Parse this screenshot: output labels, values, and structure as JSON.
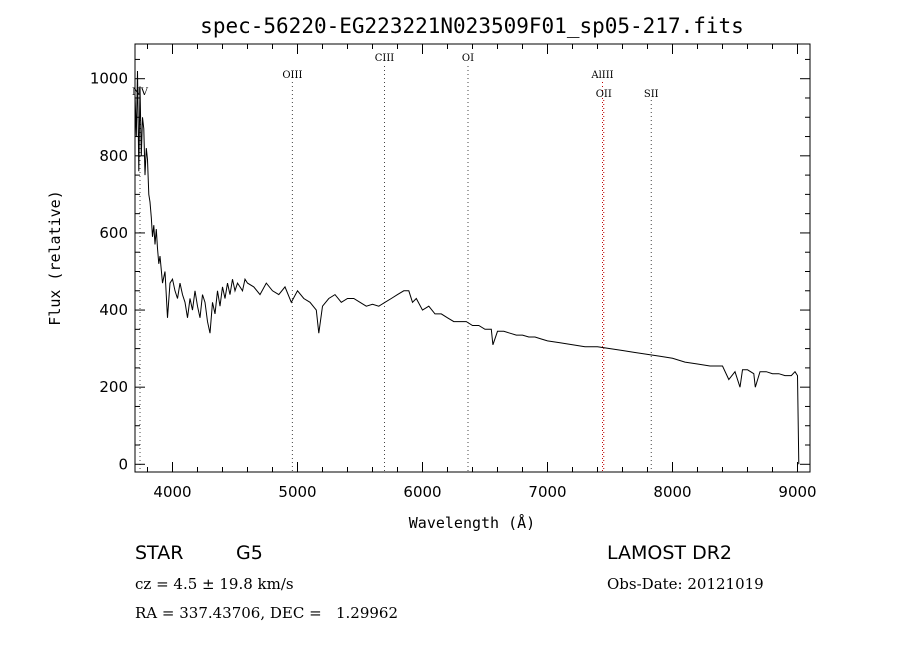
{
  "chart_data": {
    "type": "line",
    "title": "spec-56220-EG223221N023509F01_sp05-217.fits",
    "xlabel": "Wavelength (Å)",
    "ylabel": "Flux (relative)",
    "xlim": [
      3700,
      9100
    ],
    "ylim": [
      -20,
      1090
    ],
    "x_ticks": [
      4000,
      5000,
      6000,
      7000,
      8000,
      9000
    ],
    "y_ticks": [
      0,
      200,
      400,
      600,
      800,
      1000
    ],
    "grid": false,
    "series": [
      {
        "x": [
          3700,
          3710,
          3720,
          3730,
          3740,
          3750,
          3760,
          3770,
          3780,
          3790,
          3800,
          3810,
          3820,
          3830,
          3840,
          3850,
          3860,
          3870,
          3880,
          3890,
          3900,
          3920,
          3940,
          3960,
          3980,
          4000,
          4020,
          4040,
          4060,
          4080,
          4100,
          4120,
          4140,
          4160,
          4180,
          4200,
          4220,
          4240,
          4260,
          4280,
          4300,
          4320,
          4340,
          4360,
          4380,
          4400,
          4420,
          4440,
          4460,
          4480,
          4500,
          4520,
          4540,
          4560,
          4580,
          4600,
          4650,
          4700,
          4750,
          4800,
          4850,
          4900,
          4950,
          5000,
          5050,
          5100,
          5150,
          5170,
          5200,
          5250,
          5300,
          5350,
          5400,
          5450,
          5500,
          5550,
          5600,
          5650,
          5700,
          5750,
          5800,
          5850,
          5890,
          5920,
          5950,
          6000,
          6050,
          6100,
          6150,
          6200,
          6250,
          6300,
          6350,
          6400,
          6450,
          6500,
          6550,
          6563,
          6600,
          6650,
          6700,
          6750,
          6800,
          6850,
          6900,
          6950,
          7000,
          7100,
          7200,
          7300,
          7400,
          7500,
          7600,
          7700,
          7800,
          7900,
          8000,
          8100,
          8200,
          8300,
          8400,
          8450,
          8500,
          8540,
          8560,
          8600,
          8650,
          8662,
          8700,
          8750,
          8800,
          8850,
          8900,
          8950,
          8980,
          9000,
          9010
        ],
        "y": [
          960,
          850,
          1020,
          760,
          980,
          800,
          900,
          870,
          750,
          820,
          790,
          700,
          680,
          640,
          590,
          620,
          570,
          610,
          560,
          520,
          540,
          470,
          500,
          380,
          470,
          480,
          450,
          430,
          470,
          440,
          420,
          380,
          430,
          400,
          450,
          410,
          380,
          440,
          420,
          370,
          340,
          420,
          390,
          450,
          410,
          460,
          430,
          470,
          440,
          480,
          450,
          470,
          460,
          450,
          480,
          470,
          460,
          440,
          470,
          450,
          440,
          460,
          420,
          450,
          430,
          420,
          400,
          340,
          410,
          430,
          440,
          420,
          430,
          430,
          420,
          410,
          415,
          410,
          420,
          430,
          440,
          450,
          450,
          420,
          430,
          400,
          410,
          390,
          390,
          380,
          370,
          370,
          370,
          360,
          360,
          350,
          350,
          310,
          345,
          345,
          340,
          335,
          335,
          330,
          330,
          325,
          320,
          315,
          310,
          305,
          305,
          300,
          295,
          290,
          285,
          280,
          275,
          265,
          260,
          255,
          255,
          220,
          240,
          200,
          245,
          245,
          235,
          200,
          240,
          240,
          235,
          235,
          230,
          230,
          240,
          230,
          0
        ]
      }
    ],
    "annotations": [
      {
        "label": "NV",
        "x": 3740,
        "style": "dotted",
        "label_pos": "upper"
      },
      {
        "label": "OIII",
        "x": 4959,
        "style": "dotted",
        "label_pos": "mid"
      },
      {
        "label": "CIII",
        "x": 5696,
        "style": "dotted",
        "label_pos": "top"
      },
      {
        "label": "OI",
        "x": 6364,
        "style": "dotted",
        "label_pos": "top"
      },
      {
        "label": "AlIII",
        "x": 7440,
        "style": "dotted",
        "label_pos": "mid"
      },
      {
        "label": "OII",
        "x": 7450,
        "style": "dotted",
        "label_pos": "low"
      },
      {
        "label": "SII",
        "x": 7830,
        "style": "dotted",
        "label_pos": "low"
      }
    ]
  },
  "footer": {
    "object_class": "STAR",
    "subclass": "G5",
    "survey": "LAMOST DR2",
    "redshift_text": "cz = 4.5 ± 19.8 km/s",
    "obs_date": "Obs-Date: 20121019",
    "coords": "RA = 337.43706, DEC =   1.29962"
  }
}
